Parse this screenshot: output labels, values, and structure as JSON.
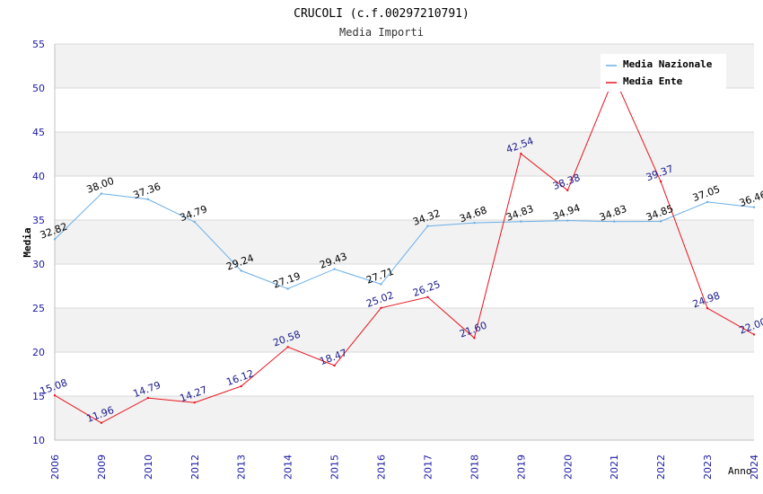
{
  "chart_data": {
    "type": "line",
    "title": "CRUCOLI (c.f.00297210791)",
    "subtitle": "Media Importi",
    "xlabel": "Anno",
    "ylabel": "Media",
    "ylim": [
      10,
      55
    ],
    "yticks": [
      "10",
      "15",
      "20",
      "25",
      "30",
      "35",
      "40",
      "45",
      "50",
      "55"
    ],
    "categories": [
      "2006",
      "2009",
      "2010",
      "2012",
      "2013",
      "2014",
      "2015",
      "2016",
      "2017",
      "2018",
      "2019",
      "2020",
      "2021",
      "2022",
      "2023",
      "2024"
    ],
    "series": [
      {
        "name": "Media Nazionale",
        "color": "#6aaee8",
        "label_color": "#000000",
        "values": [
          32.82,
          38.0,
          37.36,
          34.79,
          29.24,
          27.19,
          29.43,
          27.71,
          34.32,
          34.68,
          34.83,
          34.94,
          34.83,
          34.85,
          37.05,
          36.46
        ],
        "labels": [
          "32.82",
          "38.00",
          "37.36",
          "34.79",
          "29.24",
          "27.19",
          "29.43",
          "27.71",
          "34.32",
          "34.68",
          "34.83",
          "34.94",
          "34.83",
          "34.85",
          "37.05",
          "36.46"
        ]
      },
      {
        "name": "Media Ente",
        "color": "#e8141e",
        "label_color": "#1a1a8c",
        "values": [
          15.08,
          11.96,
          14.79,
          14.27,
          16.12,
          20.58,
          18.47,
          25.02,
          26.25,
          21.6,
          42.54,
          38.38,
          51.25,
          39.37,
          24.98,
          22.0
        ],
        "labels": [
          "15.08",
          "11.96",
          "14.79",
          "14.27",
          "16.12",
          "20.58",
          "18.47",
          "25.02",
          "26.25",
          "21.60",
          "42.54",
          "38.38",
          "",
          "39.37",
          "24.98",
          "22.00"
        ]
      }
    ],
    "legend_position": "top-right",
    "grid": true
  }
}
